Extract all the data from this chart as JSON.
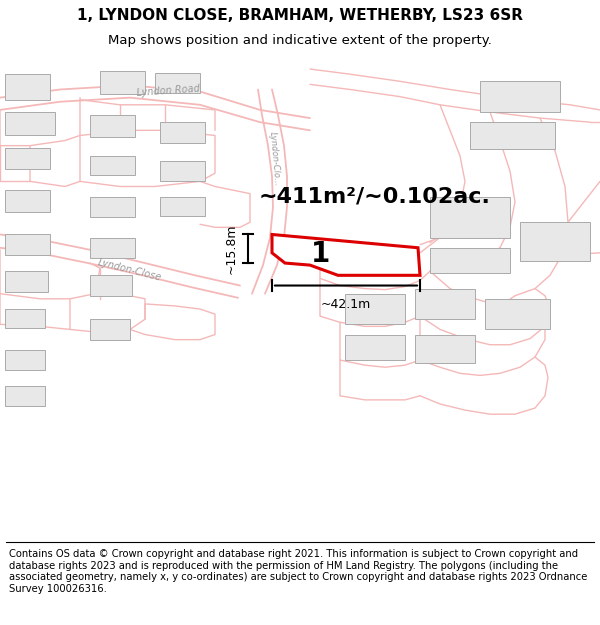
{
  "title_line1": "1, LYNDON CLOSE, BRAMHAM, WETHERBY, LS23 6SR",
  "title_line2": "Map shows position and indicative extent of the property.",
  "footer_text": "Contains OS data © Crown copyright and database right 2021. This information is subject to Crown copyright and database rights 2023 and is reproduced with the permission of HM Land Registry. The polygons (including the associated geometry, namely x, y co-ordinates) are subject to Crown copyright and database rights 2023 Ordnance Survey 100026316.",
  "area_label": "~411m²/~0.102ac.",
  "width_label": "~42.1m",
  "height_label": "~15.8m",
  "plot_number": "1",
  "map_bg": "#ffffff",
  "plot_outline_color": "#dd0000",
  "building_fill": "#e8e8e8",
  "building_edge": "#aaaaaa",
  "road_pink": "#f5b8b8",
  "road_line": "#ccaaaa",
  "label_color": "#999999",
  "title_fontsize": 11,
  "subtitle_fontsize": 9.5,
  "footer_fontsize": 7.2,
  "dim_line_color": "#000000",
  "area_fontsize": 16
}
